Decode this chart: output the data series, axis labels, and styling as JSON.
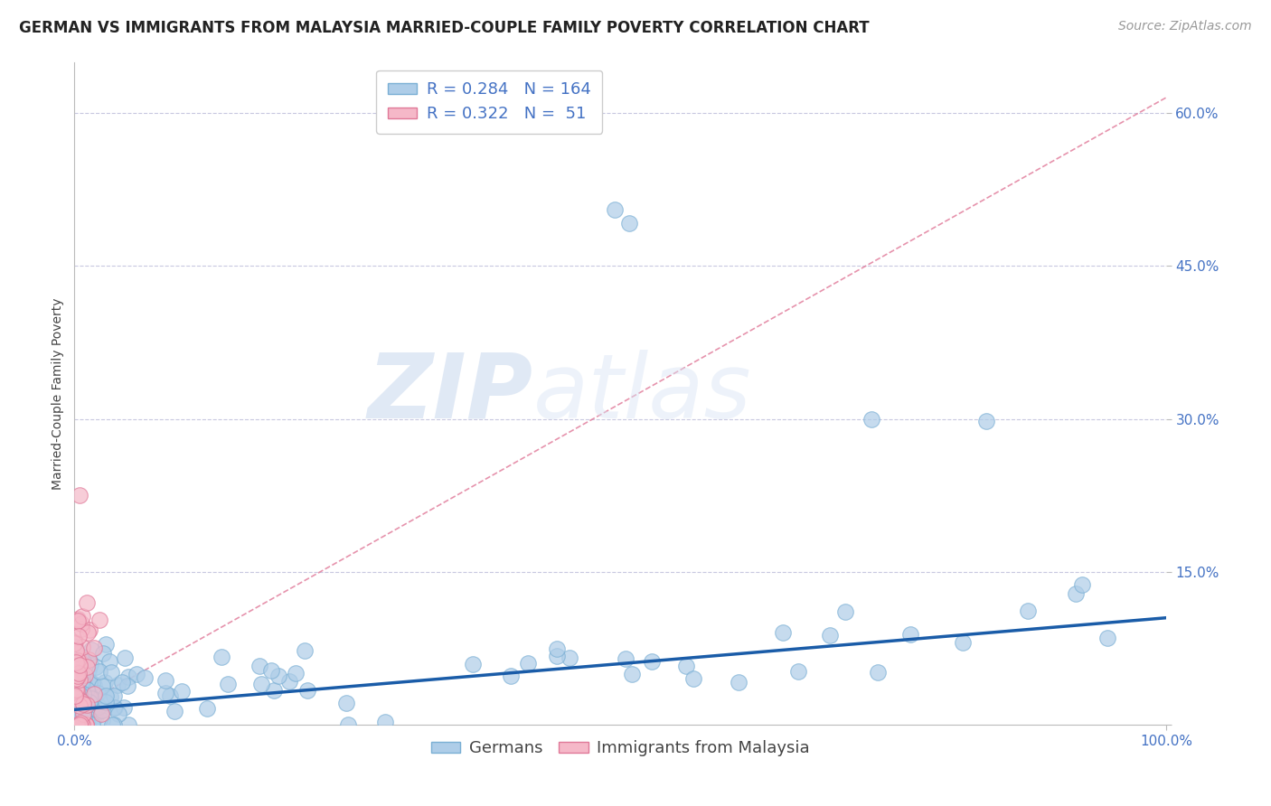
{
  "title": "GERMAN VS IMMIGRANTS FROM MALAYSIA MARRIED-COUPLE FAMILY POVERTY CORRELATION CHART",
  "source": "Source: ZipAtlas.com",
  "xlabel": "",
  "ylabel": "Married-Couple Family Poverty",
  "xlim": [
    0.0,
    1.0
  ],
  "ylim": [
    0.0,
    0.65
  ],
  "ytick_vals": [
    0.0,
    0.15,
    0.3,
    0.45,
    0.6
  ],
  "ytick_labels": [
    "",
    "15.0%",
    "30.0%",
    "45.0%",
    "60.0%"
  ],
  "xtick_vals": [
    0.0,
    1.0
  ],
  "xtick_labels": [
    "0.0%",
    "100.0%"
  ],
  "german_color": "#aecde8",
  "german_edge_color": "#7aafd4",
  "malaysia_color": "#f5b8c8",
  "malaysia_edge_color": "#e07898",
  "trend_blue_color": "#1a5ca8",
  "trend_pink_color": "#e07898",
  "R_german": 0.284,
  "N_german": 164,
  "R_malaysia": 0.322,
  "N_malaysia": 51,
  "watermark_zip": "ZIP",
  "watermark_atlas": "atlas",
  "legend_label_german": "Germans",
  "legend_label_malaysia": "Immigrants from Malaysia",
  "background_color": "#ffffff",
  "grid_color": "#c8c8e0",
  "title_fontsize": 12,
  "axis_fontsize": 10,
  "tick_fontsize": 11,
  "legend_fontsize": 13,
  "source_fontsize": 10
}
